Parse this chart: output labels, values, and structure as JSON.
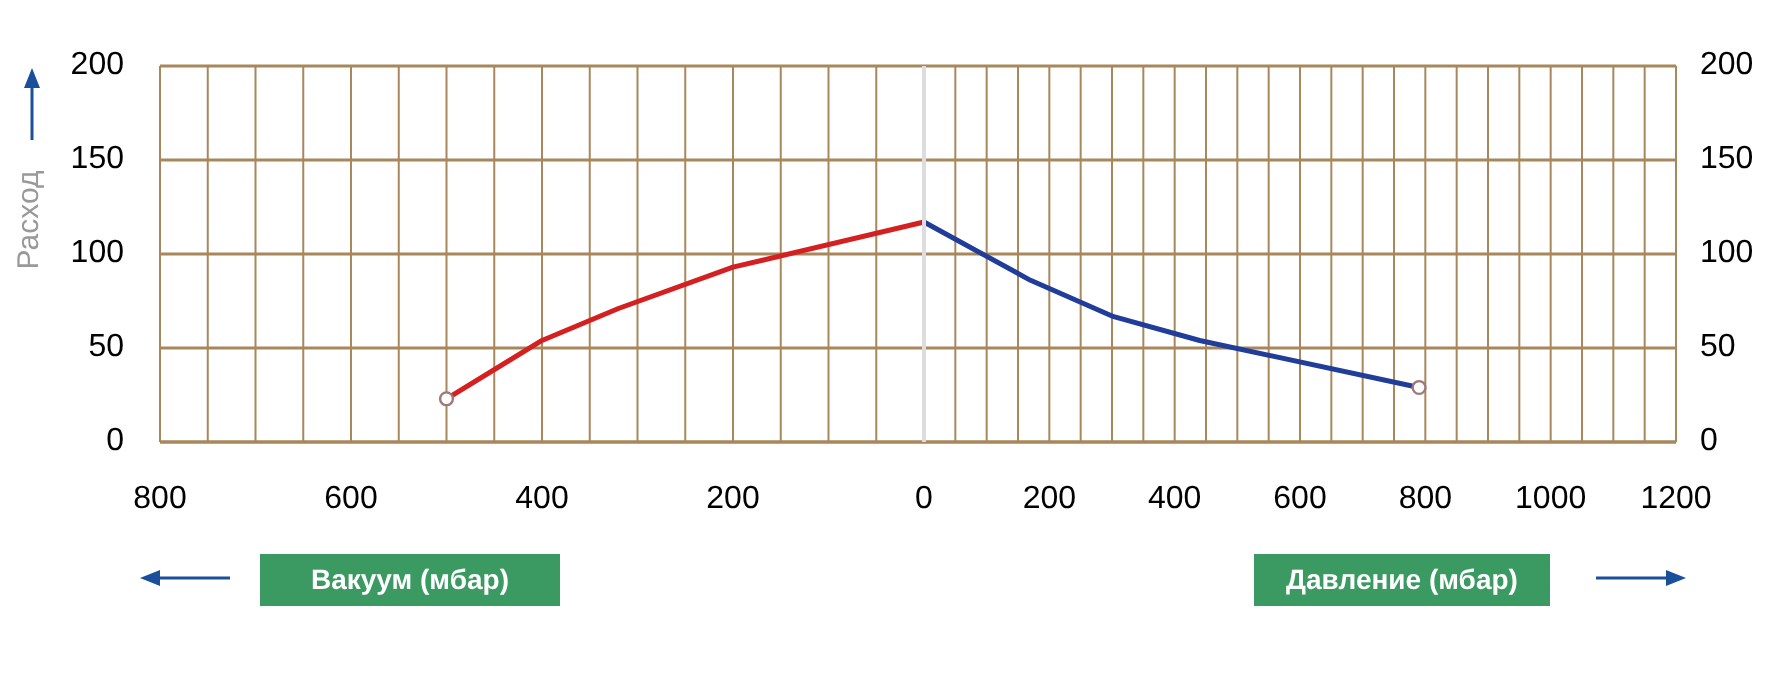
{
  "chart_data": [
    {
      "type": "line",
      "ylabel": "Расход",
      "xlabel": "Вакуум (мбар)",
      "xlim": [
        800,
        0
      ],
      "xticks": [
        800,
        600,
        400,
        200,
        {
          "value": 0,
          "label": null
        }
      ],
      "ylim": [
        0,
        200
      ],
      "yticks": [
        0,
        50,
        100,
        150,
        200
      ],
      "grid": true,
      "series": [
        {
          "color": "#d42020",
          "x": [
            500,
            400,
            320,
            200,
            0
          ],
          "values": [
            23,
            54,
            71,
            93,
            117
          ]
        },
        {
          "type": "scatter",
          "color": "#a07878",
          "marker": "circle",
          "x": [
            500
          ],
          "values": [
            23
          ]
        }
      ]
    },
    {
      "type": "line",
      "xlabel": "Давление (мбар)",
      "xlim": [
        0,
        1200
      ],
      "xticks": [
        0,
        200,
        400,
        600,
        800,
        1000,
        1200
      ],
      "ylim": [
        0,
        200
      ],
      "yticks": [
        0,
        50,
        100,
        150,
        200
      ],
      "grid": true,
      "series": [
        {
          "color": "#1f3d99",
          "x": [
            0,
            170,
            300,
            440,
            790
          ],
          "values": [
            117,
            86,
            67,
            54,
            29
          ]
        },
        {
          "type": "scatter",
          "color": "#a07878",
          "marker": "circle",
          "x": [
            790
          ],
          "values": [
            29
          ]
        }
      ]
    }
  ]
}
